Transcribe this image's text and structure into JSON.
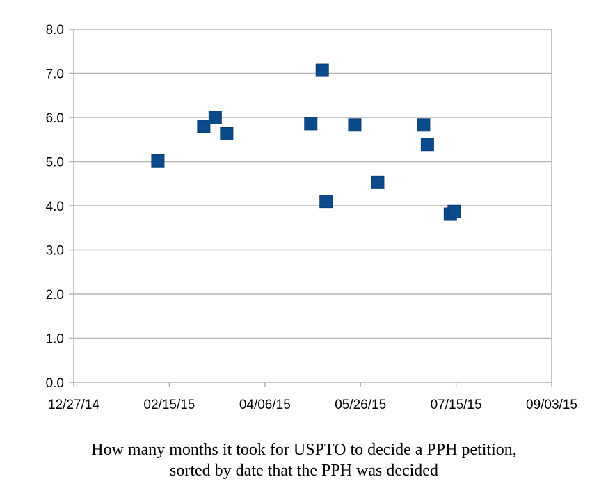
{
  "chart_data": {
    "type": "scatter",
    "title": "",
    "xlabel": "",
    "ylabel": "",
    "x_axis": {
      "kind": "date",
      "range": [
        "2014-12-27",
        "2015-09-03"
      ],
      "ticks": [
        {
          "date": "2014-12-27",
          "label": "12/27/14"
        },
        {
          "date": "2015-02-15",
          "label": "02/15/15"
        },
        {
          "date": "2015-04-06",
          "label": "04/06/15"
        },
        {
          "date": "2015-05-26",
          "label": "05/26/15"
        },
        {
          "date": "2015-07-15",
          "label": "07/15/15"
        },
        {
          "date": "2015-09-03",
          "label": "09/03/15"
        }
      ]
    },
    "y_axis": {
      "range": [
        0,
        8
      ],
      "ticks": [
        {
          "value": 0,
          "label": "0.0"
        },
        {
          "value": 1,
          "label": "1.0"
        },
        {
          "value": 2,
          "label": "2.0"
        },
        {
          "value": 3,
          "label": "3.0"
        },
        {
          "value": 4,
          "label": "4.0"
        },
        {
          "value": 5,
          "label": "5.0"
        },
        {
          "value": 6,
          "label": "6.0"
        },
        {
          "value": 7,
          "label": "7.0"
        },
        {
          "value": 8,
          "label": "8.0"
        }
      ]
    },
    "grid": "horizontal",
    "legend": "none",
    "series": [
      {
        "color": "#0b4a8b",
        "marker": "square",
        "points": [
          {
            "x": "2015-02-09",
            "y": 5.02
          },
          {
            "x": "2015-03-05",
            "y": 5.8
          },
          {
            "x": "2015-03-11",
            "y": 6.0
          },
          {
            "x": "2015-03-17",
            "y": 5.63
          },
          {
            "x": "2015-04-30",
            "y": 5.86
          },
          {
            "x": "2015-05-06",
            "y": 7.07
          },
          {
            "x": "2015-05-08",
            "y": 4.1
          },
          {
            "x": "2015-05-23",
            "y": 5.83
          },
          {
            "x": "2015-06-04",
            "y": 4.53
          },
          {
            "x": "2015-06-28",
            "y": 5.83
          },
          {
            "x": "2015-06-30",
            "y": 5.39
          },
          {
            "x": "2015-07-12",
            "y": 3.81
          },
          {
            "x": "2015-07-14",
            "y": 3.87
          }
        ]
      }
    ]
  },
  "caption": {
    "line1": "How many months it took for USPTO to decide a PPH petition,",
    "line2": "sorted by date that the PPH was decided"
  },
  "colors": {
    "axis": "#b3b3b3",
    "grid": "#b3b3b3",
    "marker": "#0b4a8b"
  }
}
